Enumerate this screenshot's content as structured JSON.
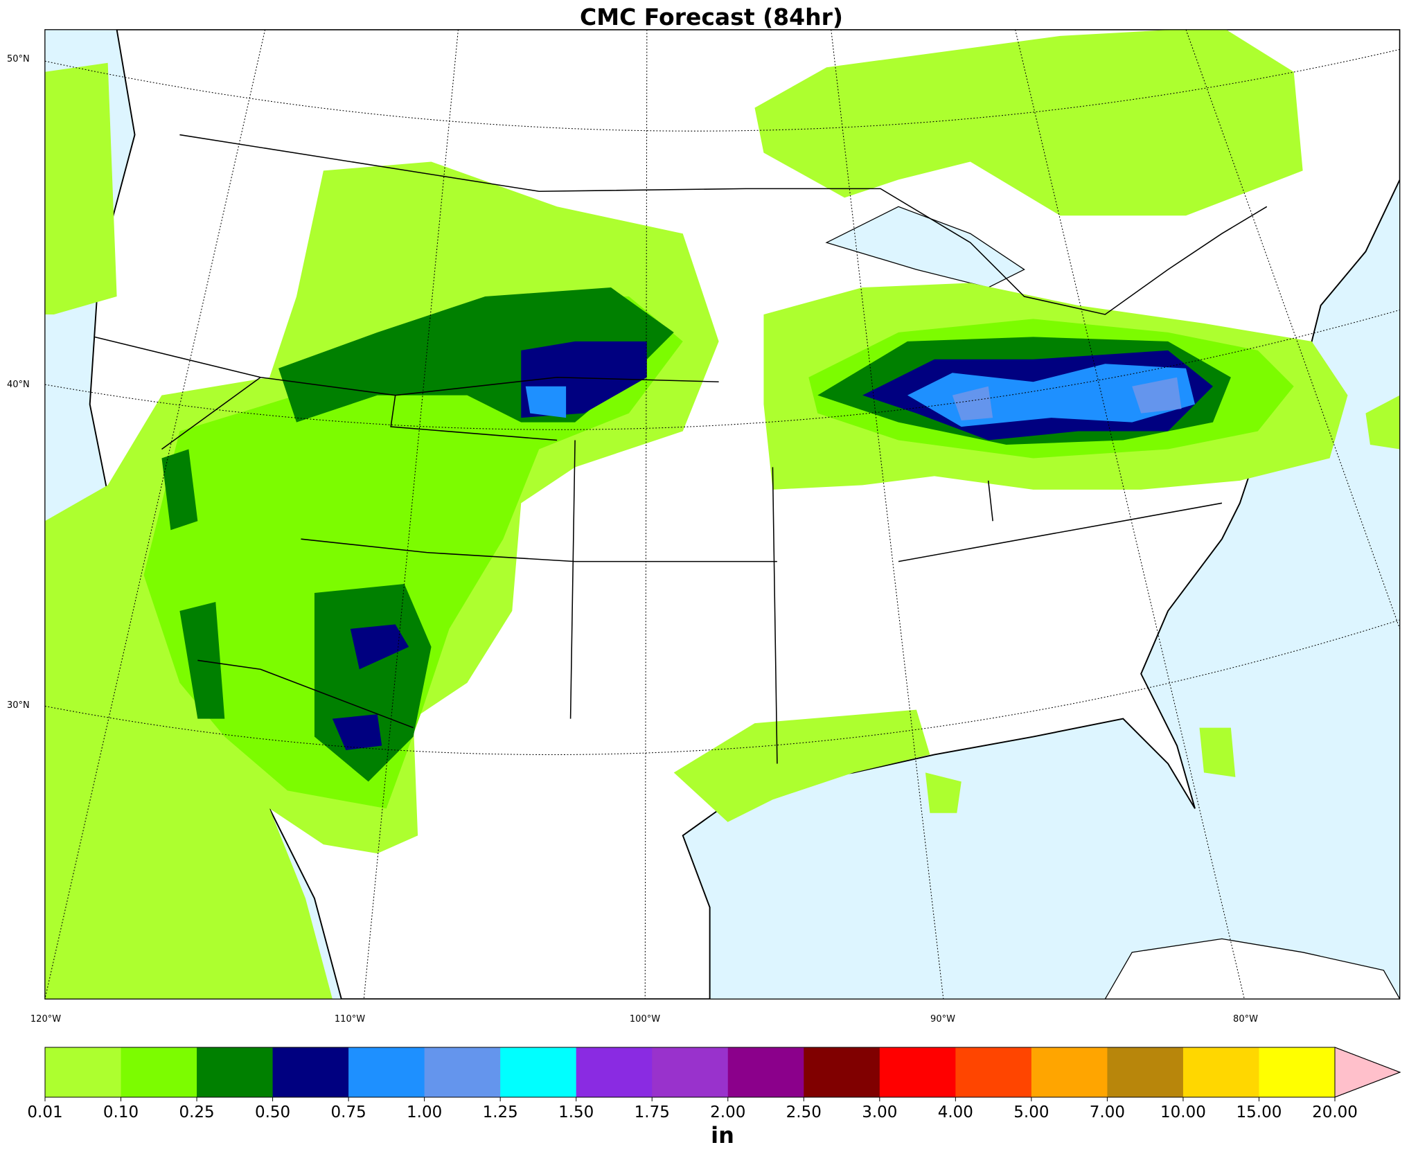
{
  "header": {
    "title": "CMC Forecast (84hr)"
  },
  "map": {
    "lat_labels": [
      "50°N",
      "40°N",
      "30°N"
    ],
    "lon_labels": [
      "120°W",
      "110°W",
      "100°W",
      "90°W",
      "80°W"
    ]
  },
  "colorbar": {
    "labels": [
      "0.01",
      "0.10",
      "0.25",
      "0.50",
      "0.75",
      "1.00",
      "1.25",
      "1.50",
      "1.75",
      "2.00",
      "2.50",
      "3.00",
      "4.00",
      "5.00",
      "7.00",
      "10.00",
      "15.00",
      "20.00"
    ],
    "colors": [
      "#adff2f",
      "#7cfc00",
      "#008000",
      "#000080",
      "#1e90ff",
      "#6495ed",
      "#00ffff",
      "#8a2be2",
      "#9932cc",
      "#8b008b",
      "#800000",
      "#ff0000",
      "#ff4500",
      "#ffa500",
      "#b8860b",
      "#ffd700",
      "#ffff00"
    ],
    "extend_color": "#ffc0cb",
    "unit": "in"
  }
}
